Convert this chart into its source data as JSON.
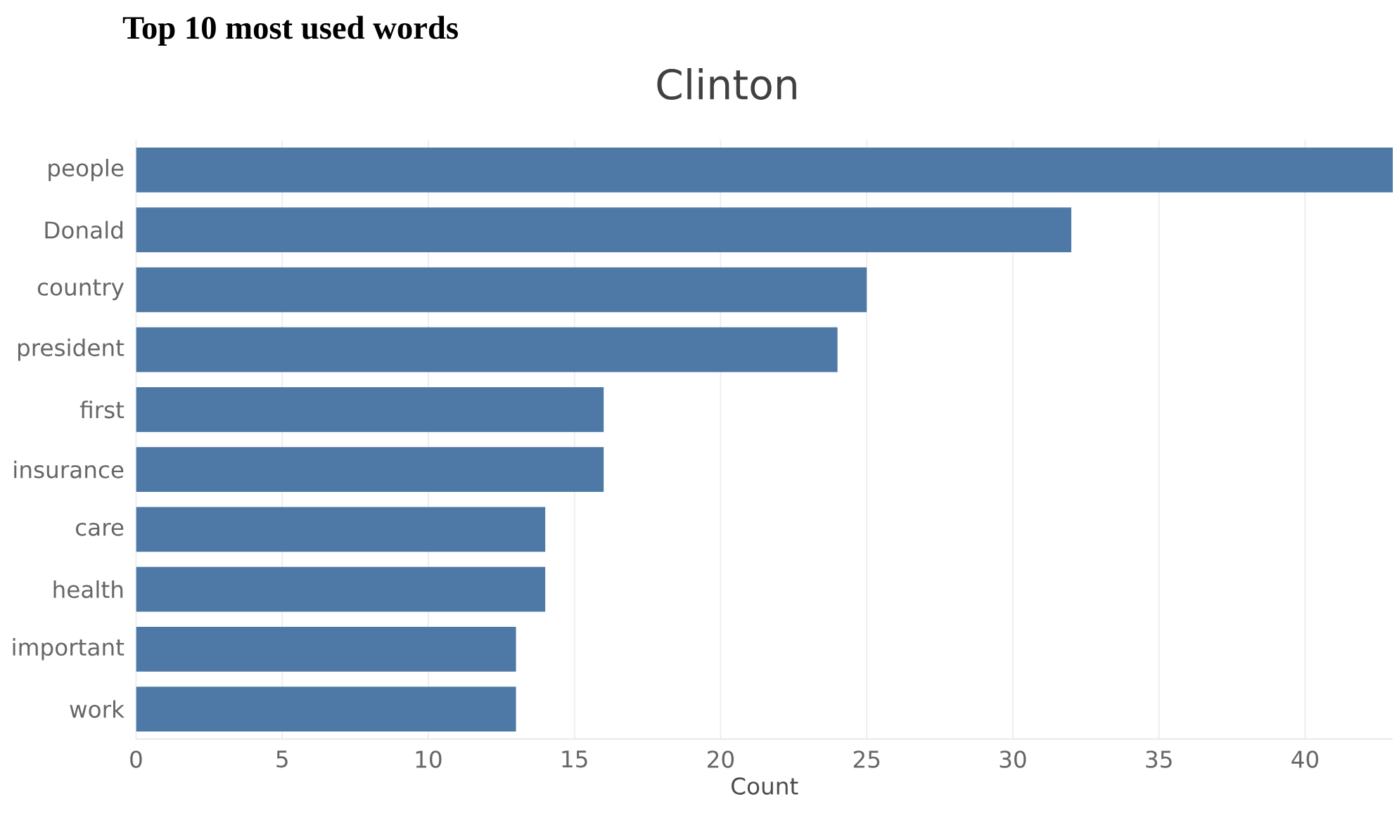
{
  "chart_data": {
    "type": "bar",
    "title": "Top 10 most used words",
    "subtitle": "Clinton",
    "xlabel": "Count",
    "orientation": "horizontal",
    "categories": [
      "people",
      "Donald",
      "country",
      "president",
      "first",
      "insurance",
      "care",
      "health",
      "important",
      "work"
    ],
    "values": [
      43,
      32,
      25,
      24,
      16,
      16,
      14,
      14,
      13,
      13
    ],
    "color": "#4e79a7",
    "xlim": [
      0,
      43
    ],
    "xticks": [
      0,
      5,
      10,
      15,
      20,
      25,
      30,
      35,
      40
    ],
    "grid": "x"
  }
}
